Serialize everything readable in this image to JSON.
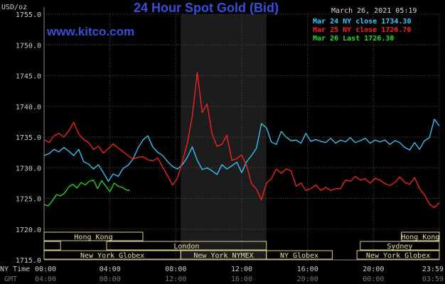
{
  "header": {
    "title": "24 Hour Spot Gold (Bid)",
    "date": "March 26, 2021 05:19",
    "website": "www.kitco.com",
    "unit": "USD/oz"
  },
  "legend": [
    {
      "text": "Mar 24 NY close 1734.30",
      "color": "#33ccff"
    },
    {
      "text": "Mar 25 NY close 1726.70",
      "color": "#ff2222"
    },
    {
      "text": "Mar 26 Last 1726.30",
      "color": "#22dd22"
    }
  ],
  "axis_labels": {
    "ny_time": "NY Time",
    "gmt": "GMT"
  },
  "y_ticks": [
    "1755.0",
    "1750.0",
    "1745.0",
    "1740.0",
    "1735.0",
    "1730.0",
    "1725.0",
    "1720.0",
    "1715.0"
  ],
  "x_ticks_ny": [
    "00:00",
    "04:00",
    "08:00",
    "12:00",
    "16:00",
    "20:00",
    "23:59"
  ],
  "x_ticks_gmt": [
    "04:00",
    "08:00",
    "12:00",
    "16:00",
    "20:00",
    "00:00",
    "03:59"
  ],
  "sessions": [
    {
      "label": "Hong Kong",
      "start": 0,
      "end": 6,
      "row": 0
    },
    {
      "label": "Hong Kong",
      "start": 21.7,
      "end": 24,
      "row": 0
    },
    {
      "label": "London",
      "start": 3.8,
      "end": 13.5,
      "row": 1
    },
    {
      "label": "",
      "start": 0,
      "end": 1,
      "row": 1
    },
    {
      "label": "Sydney",
      "start": 19.2,
      "end": 24,
      "row": 1
    },
    {
      "label": "New York Globex",
      "start": 0,
      "end": 8.3,
      "row": 2
    },
    {
      "label": "New York NYMEX",
      "start": 8.3,
      "end": 13.5,
      "row": 2
    },
    {
      "label": "NY Globex",
      "start": 13.5,
      "end": 17.5,
      "row": 2
    },
    {
      "label": "New York Globex",
      "start": 19,
      "end": 24,
      "row": 2
    }
  ],
  "chart_data": {
    "type": "line",
    "ylim": [
      1715,
      1755
    ],
    "xlim": [
      0,
      24
    ],
    "grid": true,
    "legend_position": "top-right",
    "shaded_region": [
      8.3,
      13.5
    ],
    "series": [
      {
        "name": "Mar 24 NY close 1734.30",
        "color": "#33ccff",
        "x": [
          0,
          0.3,
          0.6,
          0.9,
          1.2,
          1.5,
          1.8,
          2.1,
          2.4,
          2.7,
          3.0,
          3.3,
          3.6,
          3.9,
          4.2,
          4.5,
          4.8,
          5.1,
          5.4,
          5.7,
          6.0,
          6.3,
          6.6,
          6.9,
          7.2,
          7.5,
          7.8,
          8.1,
          8.4,
          8.7,
          9.0,
          9.3,
          9.6,
          9.9,
          10.2,
          10.5,
          10.8,
          11.1,
          11.4,
          11.7,
          12.0,
          12.3,
          12.6,
          12.9,
          13.2,
          13.5,
          13.8,
          14.1,
          14.4,
          14.7,
          15.0,
          15.3,
          15.6,
          15.9,
          16.2,
          16.5,
          16.8,
          17.1,
          17.4,
          17.7,
          18.0,
          18.3,
          18.6,
          18.9,
          19.2,
          19.5,
          19.8,
          20.1,
          20.4,
          20.7,
          21.0,
          21.3,
          21.6,
          21.9,
          22.2,
          22.5,
          22.8,
          23.1,
          23.4,
          23.7,
          23.99
        ],
        "y": [
          1732.0,
          1732.3,
          1733.0,
          1732.6,
          1733.3,
          1732.7,
          1732.0,
          1733.0,
          1731.0,
          1730.6,
          1729.8,
          1730.5,
          1729.2,
          1727.8,
          1729.0,
          1728.6,
          1729.9,
          1730.4,
          1731.4,
          1733.2,
          1734.5,
          1735.2,
          1733.4,
          1732.5,
          1732.0,
          1731.0,
          1730.2,
          1729.8,
          1730.5,
          1731.7,
          1733.4,
          1731.2,
          1729.7,
          1730.0,
          1729.5,
          1728.9,
          1730.5,
          1729.8,
          1730.3,
          1730.9,
          1729.2,
          1731.0,
          1732.0,
          1733.2,
          1737.2,
          1736.5,
          1734.2,
          1733.8,
          1735.9,
          1735.0,
          1734.4,
          1734.5,
          1734.0,
          1735.6,
          1734.3,
          1734.6,
          1734.3,
          1734.1,
          1734.8,
          1734.0,
          1734.5,
          1734.2,
          1734.9,
          1734.1,
          1734.4,
          1734.8,
          1734.0,
          1734.5,
          1734.2,
          1734.5,
          1733.8,
          1734.4,
          1734.1,
          1733.3,
          1732.9,
          1734.1,
          1733.0,
          1734.4,
          1734.9,
          1737.9,
          1736.8
        ]
      },
      {
        "name": "Mar 25 NY close 1726.70",
        "color": "#ff2222",
        "x": [
          0,
          0.3,
          0.6,
          0.9,
          1.2,
          1.5,
          1.8,
          2.1,
          2.4,
          2.7,
          3.0,
          3.3,
          3.6,
          3.9,
          4.2,
          4.5,
          4.8,
          5.1,
          5.4,
          5.7,
          6.0,
          6.3,
          6.6,
          6.9,
          7.2,
          7.5,
          7.8,
          8.1,
          8.4,
          8.7,
          9.0,
          9.3,
          9.6,
          9.9,
          10.2,
          10.5,
          10.8,
          11.1,
          11.4,
          11.7,
          12.0,
          12.3,
          12.6,
          12.9,
          13.2,
          13.5,
          13.8,
          14.1,
          14.4,
          14.7,
          15.0,
          15.3,
          15.6,
          15.9,
          16.2,
          16.5,
          16.8,
          17.1,
          17.4,
          17.7,
          18.0,
          18.3,
          18.6,
          18.9,
          19.2,
          19.5,
          19.8,
          20.1,
          20.4,
          20.7,
          21.0,
          21.3,
          21.6,
          21.9,
          22.2,
          22.5,
          22.8,
          23.1,
          23.4,
          23.7,
          23.99
        ],
        "y": [
          1734.6,
          1734.1,
          1735.2,
          1735.6,
          1735.0,
          1736.0,
          1737.4,
          1735.5,
          1734.6,
          1734.1,
          1733.0,
          1733.5,
          1732.4,
          1733.1,
          1733.9,
          1733.2,
          1732.6,
          1732.0,
          1731.4,
          1731.7,
          1731.8,
          1731.3,
          1731.1,
          1731.6,
          1730.1,
          1728.7,
          1727.2,
          1728.3,
          1731.0,
          1734.0,
          1738.4,
          1745.5,
          1739.0,
          1740.4,
          1735.5,
          1733.5,
          1733.8,
          1735.3,
          1731.2,
          1731.5,
          1732.1,
          1730.3,
          1727.4,
          1726.5,
          1724.8,
          1727.5,
          1728.2,
          1729.8,
          1729.1,
          1729.8,
          1729.5,
          1727.0,
          1727.5,
          1726.3,
          1726.6,
          1727.2,
          1726.3,
          1726.8,
          1726.3,
          1726.6,
          1726.6,
          1728.0,
          1727.8,
          1728.6,
          1728.0,
          1728.2,
          1727.5,
          1728.3,
          1728.0,
          1727.4,
          1727.1,
          1727.6,
          1728.5,
          1727.6,
          1727.3,
          1728.4,
          1726.6,
          1725.6,
          1724.1,
          1723.5,
          1724.3
        ]
      },
      {
        "name": "Mar 26 Last 1726.30",
        "color": "#22dd22",
        "x": [
          0,
          0.25,
          0.5,
          0.75,
          1.0,
          1.25,
          1.5,
          1.75,
          2.0,
          2.25,
          2.5,
          2.75,
          3.0,
          3.25,
          3.5,
          3.75,
          4.0,
          4.25,
          4.5,
          4.75,
          5.0,
          5.2
        ],
        "y": [
          1724.0,
          1723.8,
          1724.6,
          1725.6,
          1725.4,
          1725.9,
          1726.9,
          1727.3,
          1726.7,
          1727.6,
          1727.2,
          1727.8,
          1728.0,
          1726.6,
          1727.9,
          1727.0,
          1726.1,
          1727.5,
          1727.0,
          1726.8,
          1726.4,
          1726.3
        ]
      }
    ]
  }
}
